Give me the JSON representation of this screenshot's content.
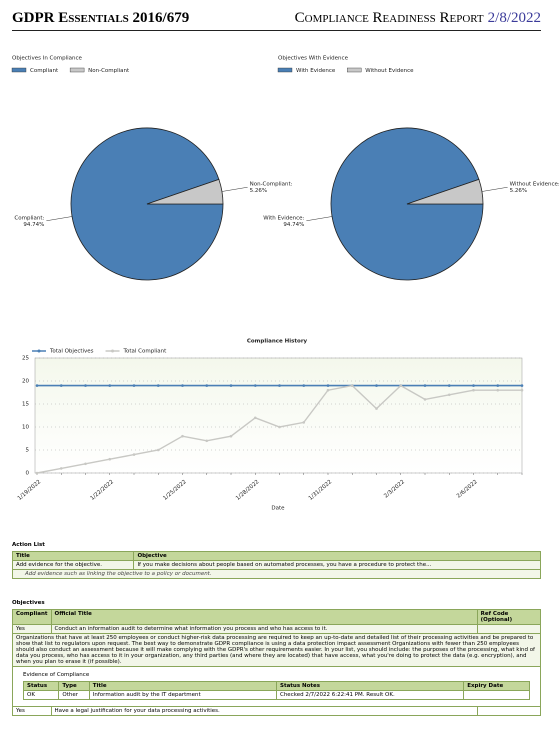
{
  "header": {
    "title": "GDPR Essentials",
    "edition": "2016/679",
    "report": "Compliance Readiness Report",
    "date": "2/8/2022"
  },
  "chart_data": [
    {
      "type": "pie",
      "title": "Objectives In Compliance",
      "categories": [
        "Compliant",
        "Non-Compliant"
      ],
      "values": [
        94.74,
        5.26
      ],
      "slice_labels": [
        "Compliant:",
        "Non-Compliant:"
      ],
      "value_labels": [
        "94.74%",
        "5.26%"
      ],
      "colors": [
        "#4a7fb5",
        "#c8c8c8"
      ]
    },
    {
      "type": "pie",
      "title": "Objectives With Evidence",
      "categories": [
        "With Evidence",
        "Without Evidence"
      ],
      "values": [
        94.74,
        5.26
      ],
      "slice_labels": [
        "With Evidence:",
        "Without Evidence:"
      ],
      "value_labels": [
        "94.74%",
        "5.26%"
      ],
      "colors": [
        "#4a7fb5",
        "#c8c8c8"
      ]
    },
    {
      "type": "line",
      "title": "Compliance History",
      "xlabel": "Date",
      "categories": [
        "1/19/2022",
        null,
        null,
        "1/22/2022",
        null,
        null,
        "1/25/2022",
        null,
        null,
        "1/28/2022",
        null,
        null,
        "1/31/2022",
        null,
        null,
        "2/3/2022",
        null,
        null,
        "2/6/2022",
        null,
        null
      ],
      "series": [
        {
          "name": "Total Objectives",
          "color": "#4a7fb5",
          "values": [
            19,
            19,
            19,
            19,
            19,
            19,
            19,
            19,
            19,
            19,
            19,
            19,
            19,
            19,
            19,
            19,
            19,
            19,
            19,
            19,
            19
          ]
        },
        {
          "name": "Total Compliant",
          "color": "#c8c8c4",
          "values": [
            0,
            1,
            2,
            3,
            4,
            5,
            8,
            7,
            8,
            12,
            10,
            11,
            18,
            19,
            14,
            19,
            16,
            17,
            18,
            18,
            18
          ]
        }
      ],
      "ylim": [
        0,
        25
      ],
      "yticks": [
        0,
        5,
        10,
        15,
        20,
        25
      ],
      "grid": true
    }
  ],
  "action_list": {
    "heading": "Action List",
    "columns": [
      "Title",
      "Objective"
    ],
    "rows": [
      [
        "Add evidence for the objective.",
        "If you make decisions about people based on automated processes, you have a procedure to protect the..."
      ]
    ],
    "note": "Add evidence such as linking the objective to a policy or document."
  },
  "objectives": {
    "heading": "Objectives",
    "columns": [
      "Compliant",
      "Official Title",
      "Ref Code (Optional)"
    ],
    "items": [
      {
        "compliant": "Yes",
        "title": "Conduct an information audit to determine what information you process and who has access to it.",
        "description": "Organizations that have at least 250 employees or conduct higher-risk data processing are required to keep an up-to-date and detailed list of their processing activities and be prepared to show that list to regulators upon request. The best way to demonstrate GDPR compliance is using a data protection impact assessment Organizations with fewer than 250 employees should also conduct an assessment because it will make complying with the GDPR's other requirements easier. In your list, you should include: the purposes of the processing, what kind of data you process, who has access to it in your organization, any third parties (and where they are located) that have access, what you're doing to protect the data (e.g. encryption), and when you plan to erase it (if possible).",
        "evidence_heading": "Evidence of Compliance",
        "evidence_columns": [
          "Status",
          "Type",
          "Title",
          "Status Notes",
          "Expiry Date"
        ],
        "evidence_rows": [
          [
            "OK",
            "Other",
            "Information audit by the IT department",
            "Checked 2/7/2022 6:22:41 PM. Result OK."
          ]
        ]
      },
      {
        "compliant": "Yes",
        "title": "Have a legal justification for your data processing activities."
      }
    ]
  }
}
